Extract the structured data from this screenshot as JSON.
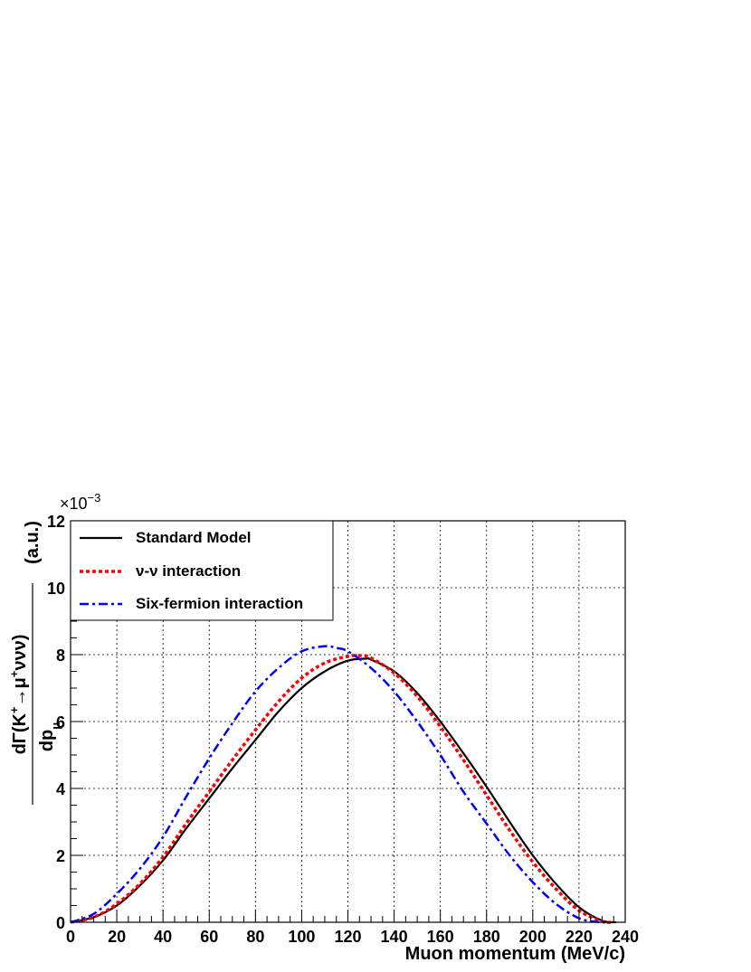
{
  "chart_data": {
    "type": "line",
    "xlabel": "Muon momentum (MeV/c)",
    "ylabel_parts": {
      "numerator": "dΓ(K",
      "sup_plus": "+",
      "arrow": "→μ",
      "sup_plus2": "+",
      "nus": "ννν)",
      "denominator": "dp",
      "denominator_sub": "μ",
      "unit": "(a.u.)"
    },
    "y_multiplier": "×10",
    "y_multiplier_exp": "−3",
    "xlim": [
      0,
      240
    ],
    "ylim": [
      0,
      12
    ],
    "x_ticks": [
      0,
      20,
      40,
      60,
      80,
      100,
      120,
      140,
      160,
      180,
      200,
      220,
      240
    ],
    "x_tick_labels": [
      "0",
      "20",
      "40",
      "60",
      "80",
      "100",
      "120",
      "140",
      "160",
      "180",
      "200",
      "220",
      "240"
    ],
    "y_ticks": [
      0,
      2,
      4,
      6,
      8,
      10,
      12
    ],
    "y_tick_labels": [
      "0",
      "2",
      "4",
      "6",
      "8",
      "10",
      "12"
    ],
    "grid": true,
    "legend_position": "top-left",
    "series": [
      {
        "name": "Standard Model",
        "color": "#000000",
        "style": "solid",
        "x": [
          0,
          10,
          20,
          30,
          40,
          50,
          60,
          70,
          80,
          90,
          100,
          110,
          120,
          128,
          130,
          140,
          150,
          160,
          170,
          180,
          190,
          200,
          210,
          220,
          230,
          236
        ],
        "y": [
          0.0,
          0.15,
          0.5,
          1.1,
          1.85,
          2.8,
          3.7,
          4.6,
          5.45,
          6.3,
          7.0,
          7.5,
          7.82,
          7.88,
          7.85,
          7.5,
          6.85,
          6.0,
          5.05,
          4.05,
          3.0,
          2.0,
          1.15,
          0.45,
          0.05,
          0.0
        ]
      },
      {
        "name": "ν-ν interaction",
        "color": "#ff0000",
        "style": "dotted",
        "x": [
          0,
          10,
          20,
          30,
          40,
          50,
          60,
          70,
          80,
          90,
          100,
          110,
          120,
          126,
          130,
          140,
          150,
          160,
          170,
          180,
          190,
          200,
          210,
          220,
          230,
          234
        ],
        "y": [
          0.0,
          0.15,
          0.55,
          1.15,
          1.95,
          2.95,
          3.9,
          4.85,
          5.75,
          6.6,
          7.3,
          7.75,
          7.95,
          7.97,
          7.9,
          7.45,
          6.75,
          5.85,
          4.85,
          3.8,
          2.75,
          1.8,
          1.0,
          0.35,
          0.03,
          0.0
        ]
      },
      {
        "name": "Six-fermion interaction",
        "color": "#0000ff",
        "style": "dashdot",
        "x": [
          0,
          10,
          20,
          30,
          40,
          50,
          60,
          70,
          80,
          90,
          100,
          110,
          115,
          120,
          130,
          140,
          150,
          160,
          170,
          180,
          190,
          200,
          210,
          220,
          228,
          232
        ],
        "y": [
          0.0,
          0.25,
          0.85,
          1.6,
          2.55,
          3.75,
          4.9,
          5.95,
          6.9,
          7.6,
          8.1,
          8.25,
          8.2,
          8.1,
          7.6,
          6.9,
          6.0,
          5.0,
          3.9,
          2.95,
          2.0,
          1.2,
          0.55,
          0.12,
          0.01,
          0.0
        ]
      }
    ]
  }
}
